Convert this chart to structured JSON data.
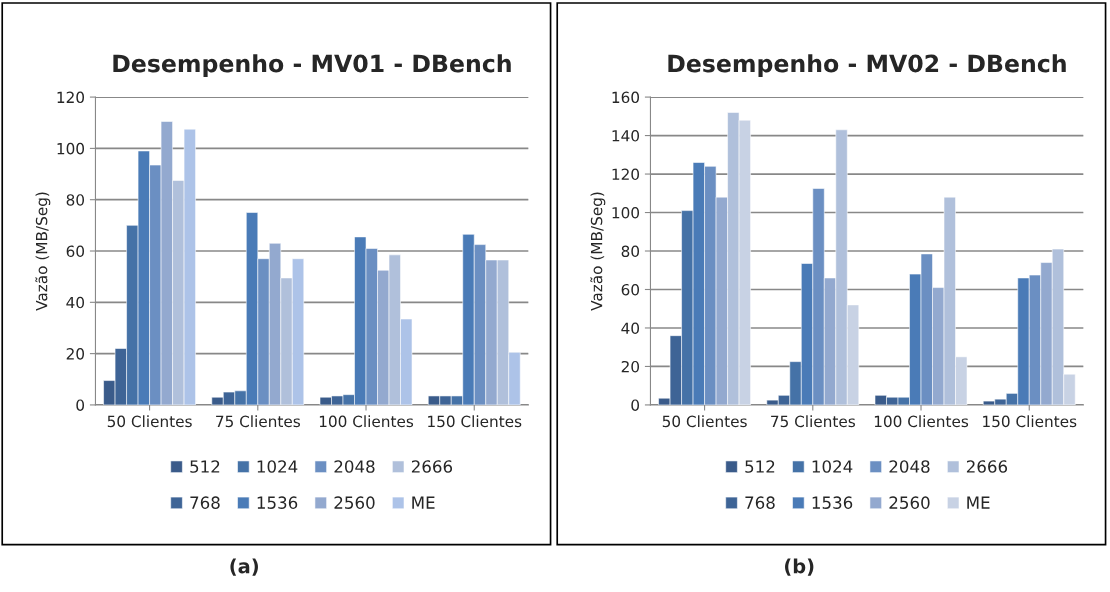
{
  "chart_data": [
    {
      "type": "bar",
      "title": "Desempenho - MV01 - DBench",
      "ylabel": "Vazão (MB/Seg)",
      "categories": [
        "50 Clientes",
        "75 Clientes",
        "100 Clientes",
        "150 Clientes"
      ],
      "ylim": [
        0,
        120
      ],
      "yticks": [
        0,
        20,
        40,
        60,
        80,
        100,
        120
      ],
      "grid": "y",
      "legend": "bottom",
      "annotations": [
        "(a)"
      ],
      "series": [
        {
          "name": "512",
          "color": "#3a5b8a",
          "values": [
            9.5,
            3,
            3,
            3.5
          ]
        },
        {
          "name": "768",
          "color": "#3e6496",
          "values": [
            22,
            5,
            3.5,
            3.5
          ]
        },
        {
          "name": "1024",
          "color": "#4572a7",
          "values": [
            70,
            5.5,
            4,
            3.5
          ]
        },
        {
          "name": "1536",
          "color": "#4a7bb7",
          "values": [
            99,
            75,
            65.5,
            66.5
          ]
        },
        {
          "name": "2048",
          "color": "#6b8fc2",
          "values": [
            93.5,
            57,
            61,
            62.5
          ]
        },
        {
          "name": "2560",
          "color": "#93a9cf",
          "values": [
            110.5,
            63,
            52.5,
            56.5
          ]
        },
        {
          "name": "2666",
          "color": "#b0c0db",
          "values": [
            87.5,
            49.5,
            58.5,
            56.5
          ]
        },
        {
          "name": "ME",
          "color": "#adc3e8",
          "values": [
            107.5,
            57,
            33.5,
            20.5
          ]
        }
      ]
    },
    {
      "type": "bar",
      "title": "Desempenho - MV02 - DBench",
      "ylabel": "Vazão (MB/Seg)",
      "categories": [
        "50 Clientes",
        "75 Clientes",
        "100 Clientes",
        "150 Clientes"
      ],
      "ylim": [
        0,
        160
      ],
      "yticks": [
        0,
        20,
        40,
        60,
        80,
        100,
        120,
        140,
        160
      ],
      "grid": "y",
      "legend": "bottom",
      "annotations": [
        "(b)"
      ],
      "series": [
        {
          "name": "512",
          "color": "#3a5b8a",
          "values": [
            3.5,
            2.5,
            5,
            2
          ]
        },
        {
          "name": "768",
          "color": "#3e6496",
          "values": [
            36,
            5,
            4,
            3
          ]
        },
        {
          "name": "1024",
          "color": "#4572a7",
          "values": [
            101,
            22.5,
            4,
            6
          ]
        },
        {
          "name": "1536",
          "color": "#4a7bb7",
          "values": [
            126,
            73.5,
            68,
            66
          ]
        },
        {
          "name": "2048",
          "color": "#6b8fc2",
          "values": [
            124,
            112.5,
            78.5,
            67.5
          ]
        },
        {
          "name": "2560",
          "color": "#93a9cf",
          "values": [
            108,
            66,
            61,
            74
          ]
        },
        {
          "name": "2666",
          "color": "#b0c0db",
          "values": [
            152,
            143,
            108,
            81
          ]
        },
        {
          "name": "ME",
          "color": "#c8d2e4",
          "values": [
            148,
            52,
            25,
            16
          ]
        }
      ]
    }
  ]
}
